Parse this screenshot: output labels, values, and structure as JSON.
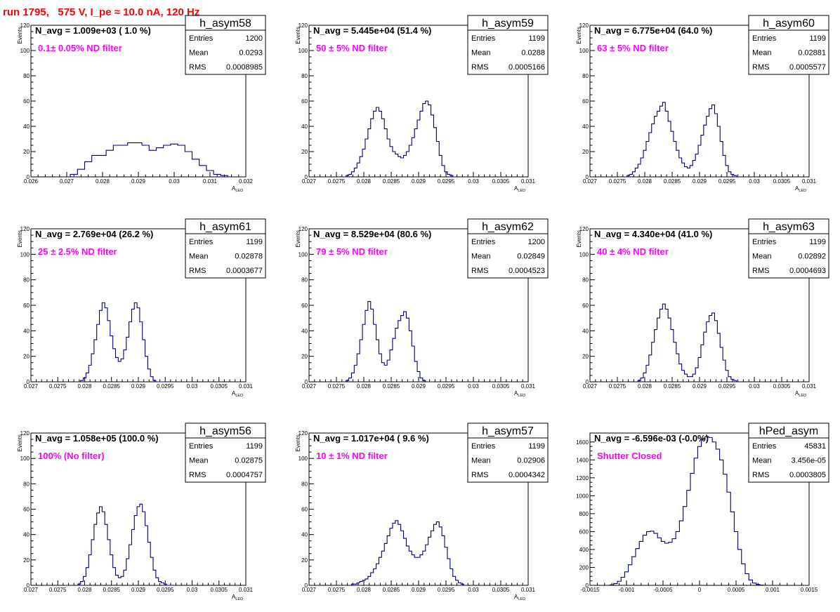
{
  "title": "run 1795,   575 V, I_pe ≈ 10.0 nA, 120 Hz",
  "colors": {
    "title": "#ff0000",
    "histogram": "#00007f",
    "annotation": "#ff00ff"
  },
  "stats_labels": {
    "entries": "Entries",
    "mean": "Mean",
    "rms": "RMS"
  },
  "chart_data": [
    {
      "type": "bar",
      "name": "h_asym58",
      "navg": "N_avg = 1.009e+03 ( 1.0 %)",
      "filter": "0.1± 0.05% ND filter",
      "stats": {
        "entries": "1200",
        "mean": "0.0293",
        "rms": "0.0008985"
      },
      "ylabel": "Events",
      "xlabel": "A",
      "xlabel_sub": "LED",
      "xlim": [
        0.026,
        0.032
      ],
      "ylim": [
        0,
        120
      ],
      "xticks": [
        "0.026",
        "0.027",
        "0.028",
        "0.029",
        "0.03",
        "0.031",
        "0.032"
      ],
      "yticks": [
        "0",
        "20",
        "40",
        "60",
        "80",
        "100",
        "120"
      ],
      "x": [
        0.0272,
        0.0274,
        0.0276,
        0.0278,
        0.028,
        0.0282,
        0.0284,
        0.0286,
        0.0288,
        0.029,
        0.0292,
        0.0294,
        0.0296,
        0.0298,
        0.03,
        0.0302,
        0.0304,
        0.0306,
        0.0308,
        0.031,
        0.0312,
        0.0314
      ],
      "values": [
        2,
        6,
        12,
        17,
        17,
        21,
        25,
        25,
        27,
        27,
        25,
        21,
        23,
        25,
        26,
        25,
        20,
        14,
        9,
        5,
        2,
        1
      ]
    },
    {
      "type": "bar",
      "name": "h_asym59",
      "navg": "N_avg = 5.445e+04 (51.4 %)",
      "filter": "50 ± 5% ND filter",
      "stats": {
        "entries": "1199",
        "mean": "0.0288",
        "rms": "0.0005166"
      },
      "ylabel": "Events",
      "xlabel": "A",
      "xlabel_sub": "LED",
      "xlim": [
        0.027,
        0.031
      ],
      "ylim": [
        0,
        120
      ],
      "xticks": [
        "0.027",
        "0.0275",
        "0.028",
        "0.0285",
        "0.029",
        "0.0295",
        "0.03",
        "0.0305",
        "0.031"
      ],
      "yticks": [
        "0",
        "20",
        "40",
        "60",
        "80",
        "100",
        "120"
      ],
      "x": [
        0.0277,
        0.02775,
        0.0278,
        0.02785,
        0.0279,
        0.02795,
        0.028,
        0.02805,
        0.0281,
        0.02815,
        0.0282,
        0.02825,
        0.0283,
        0.02835,
        0.0284,
        0.02845,
        0.0285,
        0.02855,
        0.0286,
        0.02865,
        0.0287,
        0.02875,
        0.0288,
        0.02885,
        0.0289,
        0.02895,
        0.029,
        0.02905,
        0.0291,
        0.02915,
        0.0292,
        0.02925,
        0.0293,
        0.02935,
        0.0294,
        0.02945,
        0.0295,
        0.02955,
        0.0296,
        0.02965
      ],
      "values": [
        1,
        2,
        4,
        7,
        11,
        16,
        22,
        30,
        38,
        46,
        52,
        55,
        52,
        46,
        38,
        30,
        24,
        20,
        18,
        16,
        15,
        17,
        20,
        25,
        31,
        38,
        45,
        52,
        58,
        60,
        57,
        49,
        39,
        28,
        17,
        9,
        4,
        2,
        1,
        0
      ]
    },
    {
      "type": "bar",
      "name": "h_asym60",
      "navg": "N_avg = 6.775e+04 (64.0 %)",
      "filter": "63 ± 5% ND filter",
      "stats": {
        "entries": "1199",
        "mean": "0.02881",
        "rms": "0.0005577"
      },
      "ylabel": "Events",
      "xlabel": "A",
      "xlabel_sub": "LED",
      "xlim": [
        0.027,
        0.031
      ],
      "ylim": [
        0,
        120
      ],
      "xticks": [
        "0.027",
        "0.0275",
        "0.028",
        "0.0285",
        "0.029",
        "0.0295",
        "0.03",
        "0.0305",
        "0.031"
      ],
      "yticks": [
        "0",
        "20",
        "40",
        "60",
        "80",
        "100",
        "120"
      ],
      "x": [
        0.0277,
        0.02775,
        0.0278,
        0.02785,
        0.0279,
        0.02795,
        0.028,
        0.02805,
        0.0281,
        0.02815,
        0.0282,
        0.02825,
        0.0283,
        0.02835,
        0.0284,
        0.02845,
        0.0285,
        0.02855,
        0.0286,
        0.02865,
        0.0287,
        0.02875,
        0.0288,
        0.02885,
        0.0289,
        0.02895,
        0.029,
        0.02905,
        0.0291,
        0.02915,
        0.0292,
        0.02925,
        0.0293,
        0.02935,
        0.0294,
        0.02945,
        0.0295,
        0.02955,
        0.0296,
        0.02965
      ],
      "values": [
        1,
        2,
        4,
        7,
        10,
        15,
        21,
        28,
        35,
        42,
        48,
        52,
        56,
        59,
        52,
        44,
        36,
        28,
        21,
        15,
        11,
        8,
        7,
        9,
        13,
        18,
        25,
        33,
        41,
        48,
        54,
        57,
        50,
        40,
        28,
        17,
        9,
        4,
        2,
        1
      ]
    },
    {
      "type": "bar",
      "name": "h_asym61",
      "navg": "N_avg = 2.769e+04 (26.2 %)",
      "filter": "25 ± 2.5% ND filter",
      "stats": {
        "entries": "1199",
        "mean": "0.02878",
        "rms": "0.0003677"
      },
      "ylabel": "Events",
      "xlabel": "A",
      "xlabel_sub": "LED",
      "xlim": [
        0.027,
        0.031
      ],
      "ylim": [
        0,
        120
      ],
      "xticks": [
        "0.027",
        "0.0275",
        "0.028",
        "0.0285",
        "0.029",
        "0.0295",
        "0.03",
        "0.0305",
        "0.031"
      ],
      "yticks": [
        "0",
        "20",
        "40",
        "60",
        "80",
        "100",
        "120"
      ],
      "x": [
        0.02795,
        0.028,
        0.02805,
        0.0281,
        0.02815,
        0.0282,
        0.02825,
        0.0283,
        0.02835,
        0.0284,
        0.02845,
        0.0285,
        0.02855,
        0.0286,
        0.02865,
        0.0287,
        0.02875,
        0.0288,
        0.02885,
        0.0289,
        0.02895,
        0.029,
        0.02905,
        0.0291,
        0.02915,
        0.0292,
        0.02925,
        0.0293,
        0.02935,
        0.0294,
        0.02945,
        0.0295
      ],
      "values": [
        1,
        3,
        7,
        13,
        22,
        33,
        45,
        56,
        62,
        58,
        48,
        36,
        26,
        19,
        16,
        18,
        25,
        35,
        47,
        57,
        62,
        58,
        47,
        33,
        20,
        10,
        4,
        1,
        0,
        0,
        0,
        0
      ]
    },
    {
      "type": "bar",
      "name": "h_asym62",
      "navg": "N_avg = 8.529e+04 (80.6 %)",
      "filter": "79 ± 5% ND filter",
      "stats": {
        "entries": "1200",
        "mean": "0.02849",
        "rms": "0.0004523"
      },
      "ylabel": "Events",
      "xlabel": "A",
      "xlabel_sub": "LED",
      "xlim": [
        0.027,
        0.031
      ],
      "ylim": [
        0,
        120
      ],
      "xticks": [
        "0.027",
        "0.0275",
        "0.028",
        "0.0285",
        "0.029",
        "0.0295",
        "0.03",
        "0.0305",
        "0.031"
      ],
      "yticks": [
        "0",
        "20",
        "40",
        "60",
        "80",
        "100",
        "120"
      ],
      "x": [
        0.0277,
        0.02775,
        0.0278,
        0.02785,
        0.0279,
        0.02795,
        0.028,
        0.02805,
        0.0281,
        0.02815,
        0.0282,
        0.02825,
        0.0283,
        0.02835,
        0.0284,
        0.02845,
        0.0285,
        0.02855,
        0.0286,
        0.02865,
        0.0287,
        0.02875,
        0.0288,
        0.02885,
        0.0289,
        0.02895,
        0.029,
        0.02905,
        0.0291,
        0.02915,
        0.0292,
        0.02925
      ],
      "values": [
        1,
        3,
        7,
        13,
        22,
        33,
        45,
        56,
        63,
        57,
        45,
        33,
        22,
        15,
        13,
        17,
        25,
        34,
        42,
        48,
        52,
        55,
        50,
        40,
        28,
        16,
        8,
        3,
        1,
        0,
        0,
        0
      ]
    },
    {
      "type": "bar",
      "name": "h_asym63",
      "navg": "N_avg = 4.340e+04 (41.0 %)",
      "filter": "40 ± 4% ND filter",
      "stats": {
        "entries": "1199",
        "mean": "0.02892",
        "rms": "0.0004693"
      },
      "ylabel": "Events",
      "xlabel": "A",
      "xlabel_sub": "LED",
      "xlim": [
        0.027,
        0.031
      ],
      "ylim": [
        0,
        120
      ],
      "xticks": [
        "0.027",
        "0.0275",
        "0.028",
        "0.0285",
        "0.029",
        "0.0295",
        "0.03",
        "0.0305",
        "0.031"
      ],
      "yticks": [
        "0",
        "20",
        "40",
        "60",
        "80",
        "100",
        "120"
      ],
      "x": [
        0.0279,
        0.02795,
        0.028,
        0.02805,
        0.0281,
        0.02815,
        0.0282,
        0.02825,
        0.0283,
        0.02835,
        0.0284,
        0.02845,
        0.0285,
        0.02855,
        0.0286,
        0.02865,
        0.0287,
        0.02875,
        0.0288,
        0.02885,
        0.0289,
        0.02895,
        0.029,
        0.02905,
        0.0291,
        0.02915,
        0.0292,
        0.02925,
        0.0293,
        0.02935,
        0.0294,
        0.02945,
        0.0295,
        0.02955,
        0.0296,
        0.02965
      ],
      "values": [
        1,
        3,
        7,
        13,
        21,
        31,
        41,
        50,
        57,
        61,
        57,
        50,
        41,
        31,
        22,
        14,
        9,
        6,
        4,
        4,
        6,
        11,
        19,
        29,
        39,
        47,
        52,
        54,
        48,
        38,
        27,
        17,
        9,
        4,
        2,
        1
      ]
    },
    {
      "type": "bar",
      "name": "h_asym56",
      "navg": "N_avg = 1.058e+05 (100.0 %)",
      "filter": "100% (No filter)",
      "stats": {
        "entries": "1199",
        "mean": "0.02875",
        "rms": "0.0004757"
      },
      "ylabel": "Events",
      "xlabel": "A",
      "xlabel_sub": "LED",
      "xlim": [
        0.027,
        0.031
      ],
      "ylim": [
        0,
        120
      ],
      "xticks": [
        "0.027",
        "0.0275",
        "0.028",
        "0.0285",
        "0.029",
        "0.0295",
        "0.03",
        "0.0305",
        "0.031"
      ],
      "yticks": [
        "0",
        "20",
        "40",
        "60",
        "80",
        "100",
        "120"
      ],
      "x": [
        0.0279,
        0.02795,
        0.028,
        0.02805,
        0.0281,
        0.02815,
        0.0282,
        0.02825,
        0.0283,
        0.02835,
        0.0284,
        0.02845,
        0.0285,
        0.02855,
        0.0286,
        0.02865,
        0.0287,
        0.02875,
        0.0288,
        0.02885,
        0.0289,
        0.02895,
        0.029,
        0.02905,
        0.0291,
        0.02915,
        0.0292,
        0.02925,
        0.0293,
        0.02935,
        0.0294,
        0.02945,
        0.0295,
        0.02955,
        0.0296
      ],
      "values": [
        1,
        3,
        7,
        14,
        24,
        36,
        48,
        57,
        62,
        58,
        48,
        36,
        24,
        14,
        8,
        6,
        7,
        12,
        21,
        32,
        44,
        55,
        62,
        64,
        58,
        47,
        34,
        22,
        12,
        6,
        3,
        2,
        1,
        0,
        0
      ]
    },
    {
      "type": "bar",
      "name": "h_asym57",
      "navg": "N_avg = 1.017e+04 ( 9.6 %)",
      "filter": "10 ± 1% ND filter",
      "stats": {
        "entries": "1199",
        "mean": "0.02906",
        "rms": "0.0004342"
      },
      "ylabel": "Events",
      "xlabel": "A",
      "xlabel_sub": "LED",
      "xlim": [
        0.027,
        0.031
      ],
      "ylim": [
        0,
        120
      ],
      "xticks": [
        "0.027",
        "0.0275",
        "0.028",
        "0.0285",
        "0.029",
        "0.0295",
        "0.03",
        "0.0305",
        "0.031"
      ],
      "yticks": [
        "0",
        "20",
        "40",
        "60",
        "80",
        "100",
        "120"
      ],
      "x": [
        0.0278,
        0.02785,
        0.0279,
        0.02795,
        0.028,
        0.02805,
        0.0281,
        0.02815,
        0.0282,
        0.02825,
        0.0283,
        0.02835,
        0.0284,
        0.02845,
        0.0285,
        0.02855,
        0.0286,
        0.02865,
        0.0287,
        0.02875,
        0.0288,
        0.02885,
        0.0289,
        0.02895,
        0.029,
        0.02905,
        0.0291,
        0.02915,
        0.0292,
        0.02925,
        0.0293,
        0.02935,
        0.0294,
        0.02945,
        0.0295,
        0.02955,
        0.0296,
        0.02965,
        0.0297,
        0.02975,
        0.0298,
        0.02985
      ],
      "values": [
        1,
        1,
        2,
        3,
        4,
        5,
        7,
        10,
        13,
        17,
        22,
        27,
        33,
        39,
        45,
        49,
        51,
        48,
        43,
        37,
        31,
        27,
        24,
        22,
        22,
        24,
        27,
        32,
        38,
        43,
        48,
        50,
        46,
        39,
        30,
        21,
        13,
        7,
        4,
        2,
        1,
        0
      ]
    },
    {
      "type": "bar",
      "name": "hPed_asym",
      "navg": "N_avg = -6.596e-03 (-0.0%)",
      "filter": "Shutter Closed",
      "stats": {
        "entries": "45831",
        "mean": "3.456e-05",
        "rms": "0.0003805"
      },
      "ylabel": "",
      "xlabel": "",
      "xlabel_sub": "",
      "xlim": [
        -0.0015,
        0.0015
      ],
      "ylim": [
        0,
        1700
      ],
      "xticks": [
        "-0.0015",
        "-0.001",
        "-0.0005",
        "0",
        "0.0005",
        "0.001",
        "0.0015"
      ],
      "yticks": [
        "0",
        "200",
        "400",
        "600",
        "800",
        "1000",
        "1200",
        "1400",
        "1600"
      ],
      "x": [
        -0.0012,
        -0.00115,
        -0.0011,
        -0.00105,
        -0.001,
        -0.00095,
        -0.0009,
        -0.00085,
        -0.0008,
        -0.00075,
        -0.0007,
        -0.00065,
        -0.0006,
        -0.00055,
        -0.0005,
        -0.00045,
        -0.0004,
        -0.00035,
        -0.0003,
        -0.00025,
        -0.0002,
        -0.00015,
        -0.0001,
        -5e-05,
        0.0,
        5e-05,
        0.0001,
        0.00015,
        0.0002,
        0.00025,
        0.0003,
        0.00035,
        0.0004,
        0.00045,
        0.0005,
        0.00055,
        0.0006,
        0.00065,
        0.0007,
        0.00075,
        0.0008,
        0.00085,
        0.0009
      ],
      "values": [
        5,
        20,
        45,
        90,
        150,
        230,
        320,
        410,
        490,
        560,
        600,
        605,
        580,
        530,
        490,
        470,
        480,
        520,
        600,
        720,
        880,
        1060,
        1250,
        1420,
        1550,
        1630,
        1660,
        1650,
        1600,
        1520,
        1400,
        1240,
        1040,
        820,
        600,
        400,
        240,
        130,
        60,
        25,
        10,
        3,
        1
      ]
    }
  ]
}
